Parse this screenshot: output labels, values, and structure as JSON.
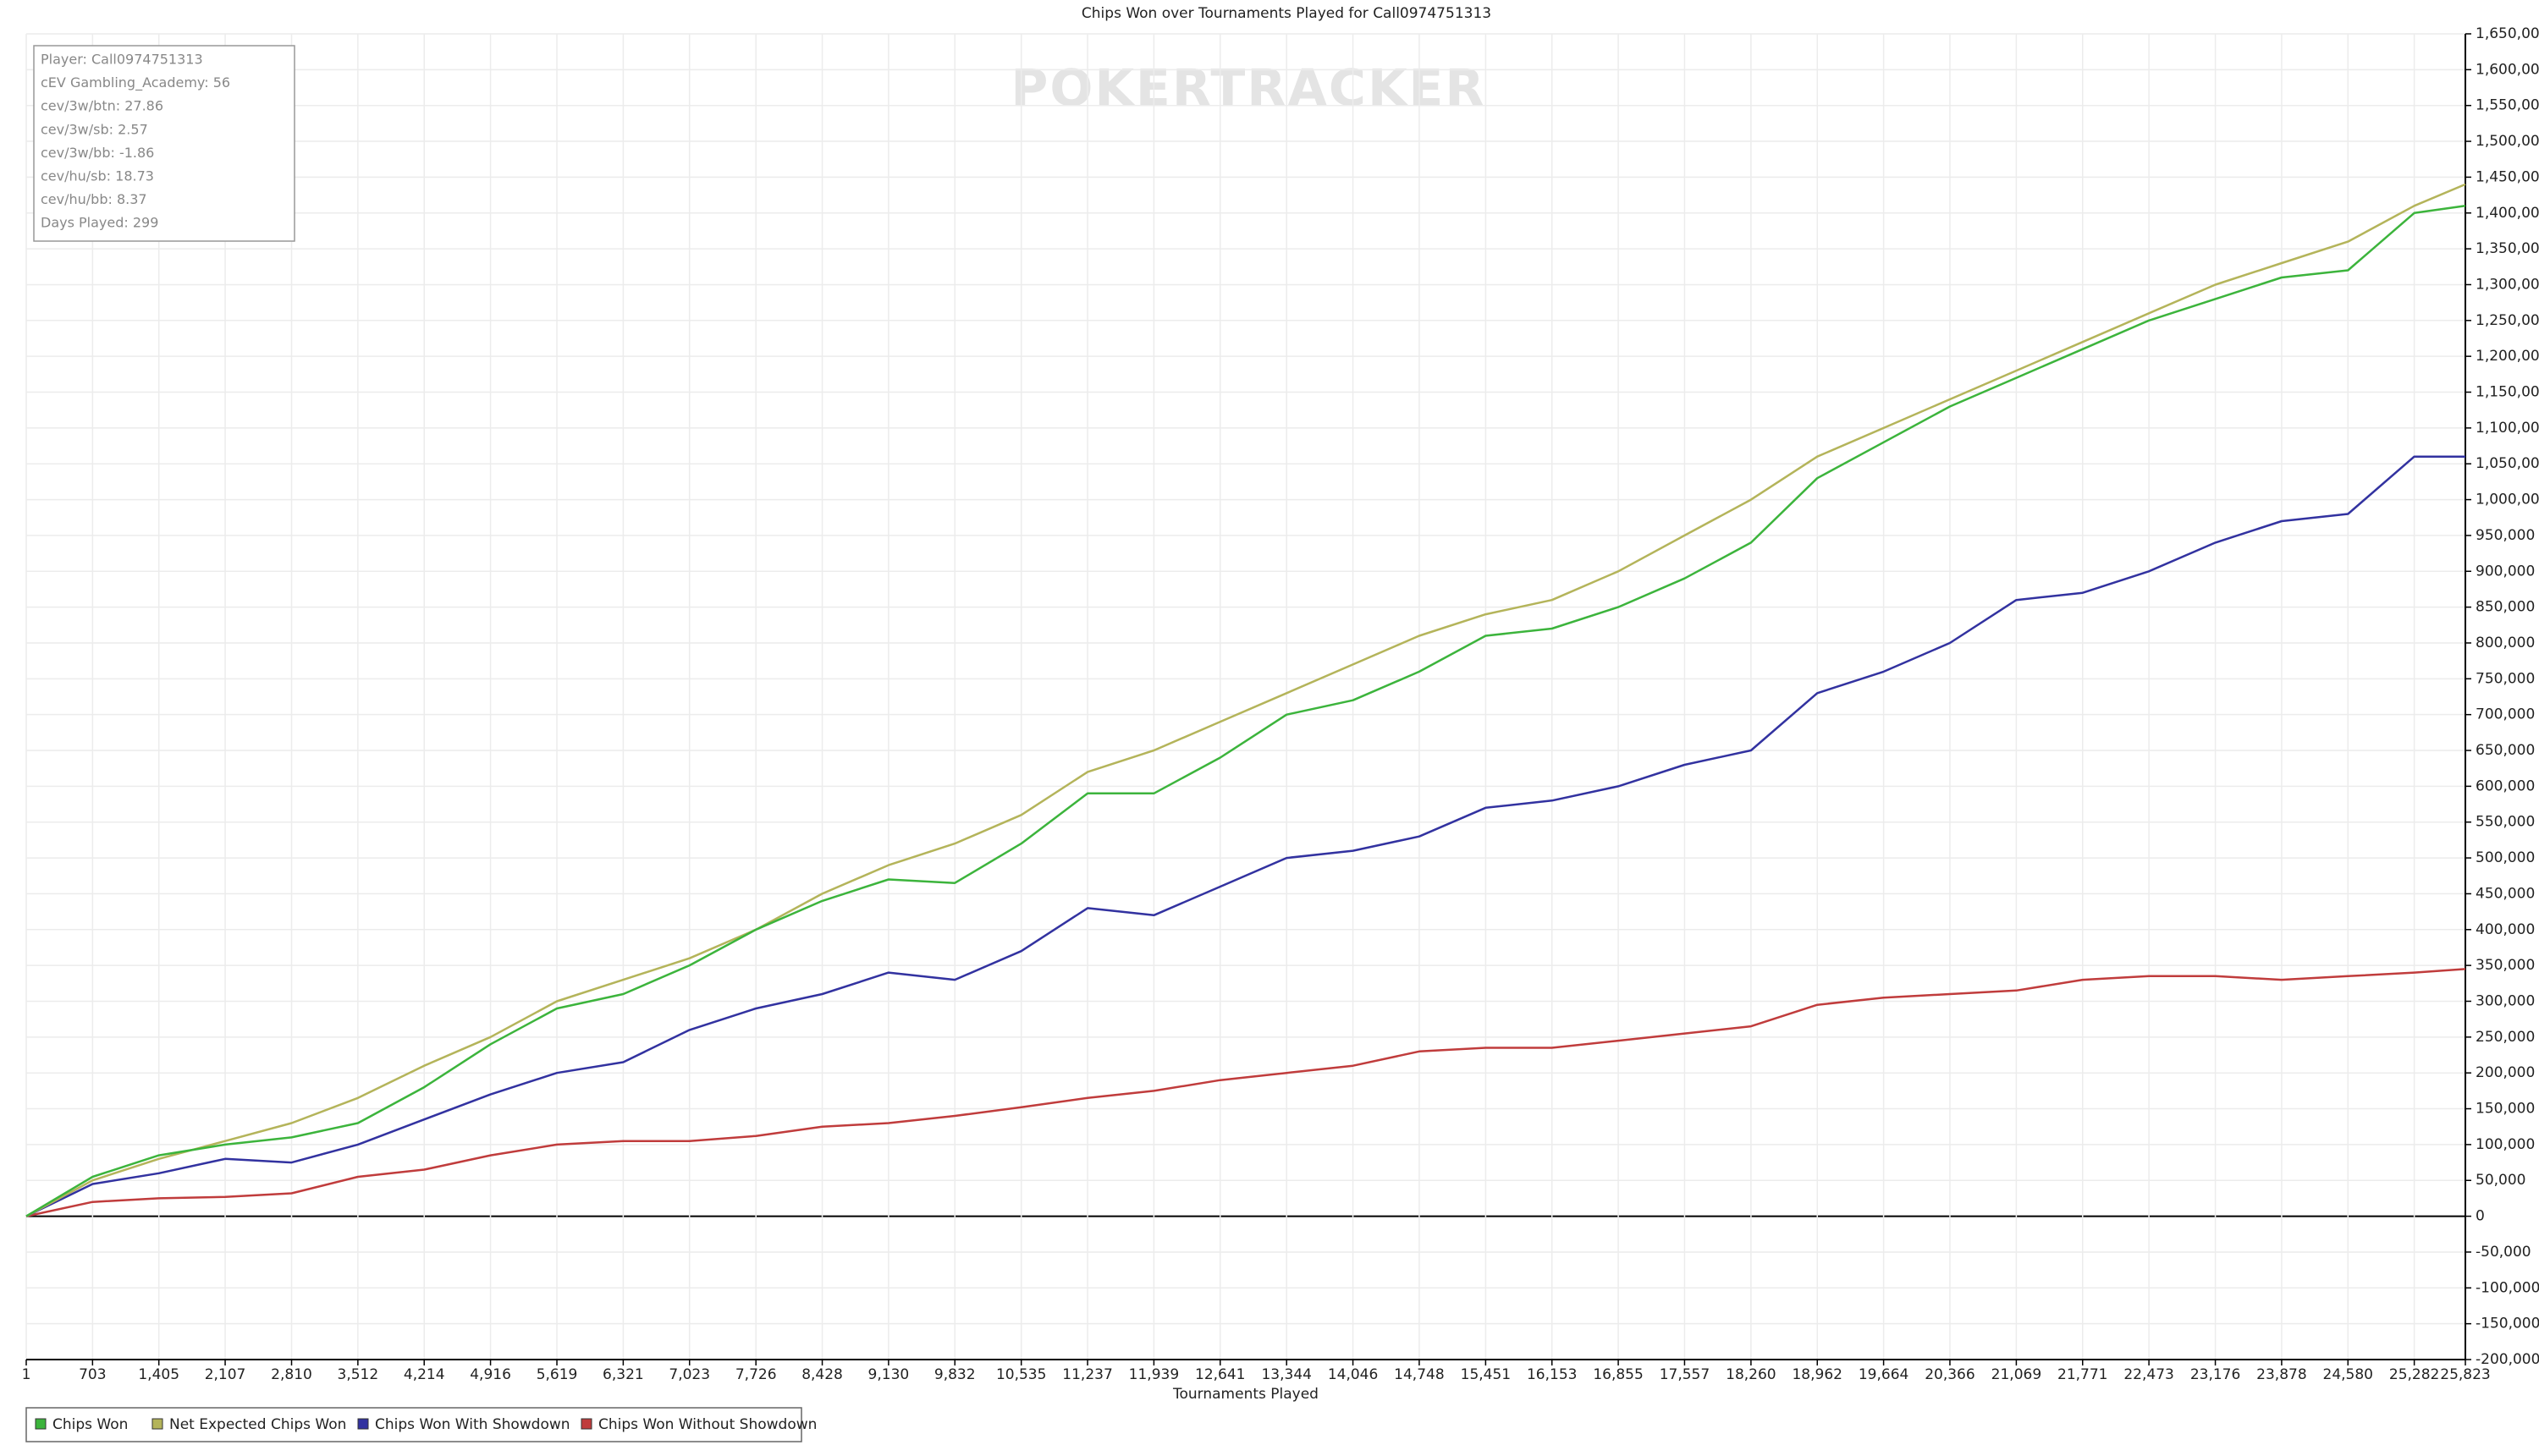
{
  "chart_data": {
    "type": "line",
    "title": "Chips Won over Tournaments Played for Call0974751313",
    "watermark": "POKERTRACKER",
    "xlabel": "Tournaments Played",
    "stats": [
      "Player: Call0974751313",
      "cEV Gambling_Academy: 56",
      "cev/3w/btn: 27.86",
      "cev/3w/sb: 2.57",
      "cev/3w/bb: -1.86",
      "cev/hu/sb: 18.73",
      "cev/hu/bb: 8.37",
      "Days Played: 299"
    ],
    "grid": true,
    "xlim": [
      1,
      25823
    ],
    "ylim": [
      -200000,
      1650000
    ],
    "x": [
      1,
      703,
      1405,
      2107,
      2810,
      3512,
      4214,
      4916,
      5619,
      6321,
      7023,
      7726,
      8428,
      9130,
      9832,
      10535,
      11237,
      11939,
      12641,
      13344,
      14046,
      14748,
      15451,
      16153,
      16855,
      17557,
      18260,
      18962,
      19664,
      20366,
      21069,
      21771,
      22473,
      23176,
      23878,
      24580,
      25282,
      25823
    ],
    "xticks": [
      1,
      703,
      {
        "value": 1405,
        "label": "1,405"
      },
      {
        "value": 2107,
        "label": "2,107"
      },
      {
        "value": 2810,
        "label": "2,810"
      },
      {
        "value": 3512,
        "label": "3,512"
      },
      {
        "value": 4214,
        "label": "4,214"
      },
      {
        "value": 4916,
        "label": "4,916"
      },
      {
        "value": 5619,
        "label": "5,619"
      },
      {
        "value": 6321,
        "label": "6,321"
      },
      {
        "value": 7023,
        "label": "7,023"
      },
      {
        "value": 7726,
        "label": "7,726"
      },
      {
        "value": 8428,
        "label": "8,428"
      },
      {
        "value": 9130,
        "label": "9,130"
      },
      {
        "value": 9832,
        "label": "9,832"
      },
      {
        "value": 10535,
        "label": "10,535"
      },
      {
        "value": 11237,
        "label": "11,237"
      },
      {
        "value": 11939,
        "label": "11,939"
      },
      {
        "value": 12641,
        "label": "12,641"
      },
      {
        "value": 13344,
        "label": "13,344"
      },
      {
        "value": 14046,
        "label": "14,046"
      },
      {
        "value": 14748,
        "label": "14,748"
      },
      {
        "value": 15451,
        "label": "15,451"
      },
      {
        "value": 16153,
        "label": "16,153"
      },
      {
        "value": 16855,
        "label": "16,855"
      },
      {
        "value": 17557,
        "label": "17,557"
      },
      {
        "value": 18260,
        "label": "18,260"
      },
      {
        "value": 18962,
        "label": "18,962"
      },
      {
        "value": 19664,
        "label": "19,664"
      },
      {
        "value": 20366,
        "label": "20,366"
      },
      {
        "value": 21069,
        "label": "21,069"
      },
      {
        "value": 21771,
        "label": "21,771"
      },
      {
        "value": 22473,
        "label": "22,473"
      },
      {
        "value": 23176,
        "label": "23,176"
      },
      {
        "value": 23878,
        "label": "23,878"
      },
      {
        "value": 24580,
        "label": "24,580"
      },
      {
        "value": 25282,
        "label": "25,282"
      },
      {
        "value": 25823,
        "label": "25,823"
      }
    ],
    "yticks": [
      {
        "value": -200000,
        "label": "-200,000"
      },
      {
        "value": -150000,
        "label": "-150,000"
      },
      {
        "value": -100000,
        "label": "-100,000"
      },
      {
        "value": -50000,
        "label": "-50,000"
      },
      0,
      {
        "value": 50000,
        "label": "50,000"
      },
      {
        "value": 100000,
        "label": "100,000"
      },
      {
        "value": 150000,
        "label": "150,000"
      },
      {
        "value": 200000,
        "label": "200,000"
      },
      {
        "value": 250000,
        "label": "250,000"
      },
      {
        "value": 300000,
        "label": "300,000"
      },
      {
        "value": 350000,
        "label": "350,000"
      },
      {
        "value": 400000,
        "label": "400,000"
      },
      {
        "value": 450000,
        "label": "450,000"
      },
      {
        "value": 500000,
        "label": "500,000"
      },
      {
        "value": 550000,
        "label": "550,000"
      },
      {
        "value": 600000,
        "label": "600,000"
      },
      {
        "value": 650000,
        "label": "650,000"
      },
      {
        "value": 700000,
        "label": "700,000"
      },
      {
        "value": 750000,
        "label": "750,000"
      },
      {
        "value": 800000,
        "label": "800,000"
      },
      {
        "value": 850000,
        "label": "850,000"
      },
      {
        "value": 900000,
        "label": "900,000"
      },
      {
        "value": 950000,
        "label": "950,000"
      },
      {
        "value": 1000000,
        "label": "1,000,000"
      },
      {
        "value": 1050000,
        "label": "1,050,000"
      },
      {
        "value": 1100000,
        "label": "1,100,000"
      },
      {
        "value": 1150000,
        "label": "1,150,000"
      },
      {
        "value": 1200000,
        "label": "1,200,000"
      },
      {
        "value": 1250000,
        "label": "1,250,000"
      },
      {
        "value": 1300000,
        "label": "1,300,000"
      },
      {
        "value": 1350000,
        "label": "1,350,000"
      },
      {
        "value": 1400000,
        "label": "1,400,000"
      },
      {
        "value": 1450000,
        "label": "1,450,000"
      },
      {
        "value": 1500000,
        "label": "1,500,000"
      },
      {
        "value": 1550000,
        "label": "1,550,000"
      },
      {
        "value": 1600000,
        "label": "1,600,000"
      },
      {
        "value": 1650000,
        "label": "1,650,000"
      }
    ],
    "series": [
      {
        "name": "Chips Won",
        "color": "#3cb43c",
        "values": [
          0,
          55000,
          85000,
          100000,
          110000,
          130000,
          180000,
          240000,
          290000,
          310000,
          350000,
          400000,
          440000,
          470000,
          465000,
          520000,
          590000,
          590000,
          640000,
          700000,
          720000,
          760000,
          810000,
          820000,
          850000,
          890000,
          940000,
          1030000,
          1080000,
          1130000,
          1170000,
          1210000,
          1250000,
          1280000,
          1310000,
          1320000,
          1400000,
          1410000
        ]
      },
      {
        "name": "Net Expected Chips Won",
        "color": "#b4b45a",
        "values": [
          0,
          50000,
          80000,
          105000,
          130000,
          165000,
          210000,
          250000,
          300000,
          330000,
          360000,
          400000,
          450000,
          490000,
          520000,
          560000,
          620000,
          650000,
          690000,
          730000,
          770000,
          810000,
          840000,
          860000,
          900000,
          950000,
          1000000,
          1060000,
          1100000,
          1140000,
          1180000,
          1220000,
          1260000,
          1300000,
          1330000,
          1360000,
          1410000,
          1440000
        ]
      },
      {
        "name": "Chips Won With Showdown",
        "color": "#3232a0",
        "values": [
          0,
          45000,
          60000,
          80000,
          75000,
          100000,
          135000,
          170000,
          200000,
          215000,
          260000,
          290000,
          310000,
          340000,
          330000,
          370000,
          430000,
          420000,
          460000,
          500000,
          510000,
          530000,
          570000,
          580000,
          600000,
          630000,
          650000,
          730000,
          760000,
          800000,
          860000,
          870000,
          900000,
          940000,
          970000,
          980000,
          1060000,
          1060000
        ]
      },
      {
        "name": "Chips Won Without Showdown",
        "color": "#c03c3c",
        "values": [
          0,
          20000,
          25000,
          27000,
          32000,
          55000,
          65000,
          85000,
          100000,
          105000,
          105000,
          112000,
          125000,
          130000,
          140000,
          152000,
          165000,
          175000,
          190000,
          200000,
          210000,
          230000,
          235000,
          235000,
          245000,
          255000,
          265000,
          295000,
          305000,
          310000,
          315000,
          330000,
          335000,
          335000,
          330000,
          335000,
          340000,
          345000
        ]
      }
    ]
  }
}
